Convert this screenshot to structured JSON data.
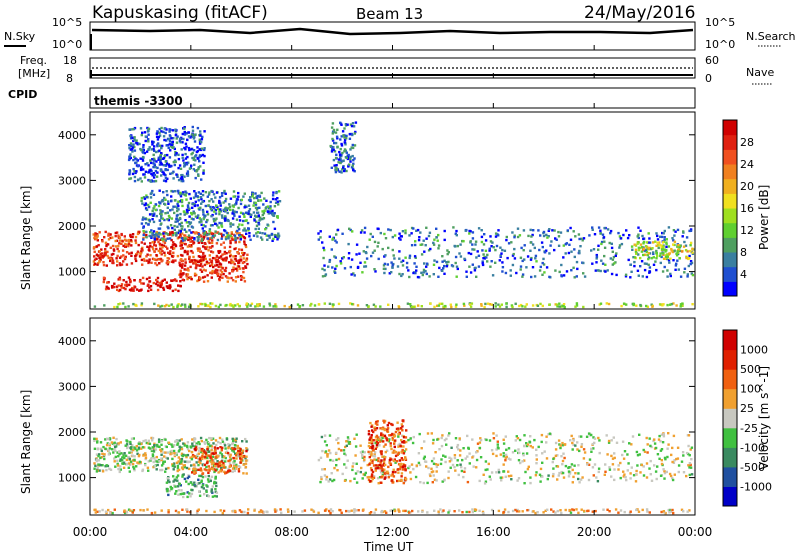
{
  "header": {
    "station": "Kapuskasing (fitACF)",
    "beam": "Beam 13",
    "date": "24/May/2016"
  },
  "noise_panel": {
    "left_label": "N.Sky",
    "left_ticks": [
      "10^5",
      "10^0"
    ],
    "right_ticks": [
      "10^5",
      "10^0"
    ],
    "right_label": "N.Search"
  },
  "freq_panel": {
    "label_line1": "Freq.",
    "label_line2": "[MHz]",
    "left_ticks": [
      "18",
      "8"
    ],
    "right_ticks": [
      "60",
      "0"
    ],
    "right_label": "Nave"
  },
  "cpid_panel": {
    "label": "CPID",
    "value": "themis -3300"
  },
  "axes": {
    "ylabel": "Slant Range [km]",
    "xlabel": "Time UT",
    "yticks": [
      "1000",
      "2000",
      "3000",
      "4000"
    ],
    "xticks": [
      "00:00",
      "04:00",
      "08:00",
      "12:00",
      "16:00",
      "20:00",
      "00:00"
    ]
  },
  "chart_data": [
    {
      "type": "heatmap",
      "title": "",
      "xlabel": "",
      "ylabel": "Slant Range [km]",
      "x_range_hours": [
        0,
        24
      ],
      "y_range_km": [
        180,
        4500
      ],
      "colorbar": {
        "label": "Power [dB]",
        "ticks": [
          "4",
          "8",
          "12",
          "16",
          "20",
          "24",
          "28"
        ],
        "colors": [
          "#0000ff",
          "#1f4fd0",
          "#3a7fa0",
          "#4f9f60",
          "#5fcf30",
          "#9fdf20",
          "#f0e020",
          "#f0b020",
          "#f08020",
          "#f05020",
          "#e02010",
          "#d00000"
        ]
      },
      "regions": [
        {
          "t0": 0.1,
          "t1": 6.2,
          "r0": 1150,
          "r1": 1900,
          "level": 0.85
        },
        {
          "t0": 0.5,
          "t1": 3.6,
          "r0": 600,
          "r1": 900,
          "level": 0.95
        },
        {
          "t0": 3.5,
          "t1": 6.2,
          "r0": 800,
          "r1": 1300,
          "level": 0.85
        },
        {
          "t0": 2.0,
          "t1": 7.5,
          "r0": 1700,
          "r1": 2800,
          "level": 0.2
        },
        {
          "t0": 9.0,
          "t1": 23.9,
          "r0": 900,
          "r1": 2000,
          "level": 0.18
        },
        {
          "t0": 21.5,
          "t1": 23.9,
          "r0": 1300,
          "r1": 1700,
          "level": 0.5
        },
        {
          "t0": 0.1,
          "t1": 23.9,
          "r0": 200,
          "r1": 330,
          "level": 0.45
        },
        {
          "t0": 9.5,
          "t1": 10.5,
          "r0": 3200,
          "r1": 4300,
          "level": 0.15
        },
        {
          "t0": 1.5,
          "t1": 4.5,
          "r0": 3000,
          "r1": 4200,
          "level": 0.12
        }
      ]
    },
    {
      "type": "heatmap",
      "title": "",
      "xlabel": "Time UT",
      "ylabel": "Slant Range [km]",
      "x_range_hours": [
        0,
        24
      ],
      "y_range_km": [
        180,
        4500
      ],
      "colorbar": {
        "label": "Velocity [m s^-1]",
        "ticks": [
          "1000",
          "500",
          "100",
          "25",
          "-25",
          "-100",
          "-500",
          "-1000"
        ],
        "colors": [
          "#0000c8",
          "#2050a0",
          "#3a8a60",
          "#40c040",
          "#c8c8c0",
          "#f0a030",
          "#f06010",
          "#e02000",
          "#d00000"
        ]
      },
      "regions": [
        {
          "t0": 0.1,
          "t1": 6.2,
          "r0": 1150,
          "r1": 1900,
          "level": 0.45
        },
        {
          "t0": 3.0,
          "t1": 5.0,
          "r0": 600,
          "r1": 1100,
          "level": 0.35
        },
        {
          "t0": 4.0,
          "t1": 6.2,
          "r0": 1100,
          "r1": 1700,
          "level": 0.75
        },
        {
          "t0": 9.0,
          "t1": 23.9,
          "r0": 900,
          "r1": 2000,
          "level": 0.5
        },
        {
          "t0": 11.0,
          "t1": 12.5,
          "r0": 900,
          "r1": 2300,
          "level": 0.75
        },
        {
          "t0": 0.1,
          "t1": 23.9,
          "r0": 200,
          "r1": 330,
          "level": 0.6
        }
      ]
    }
  ]
}
